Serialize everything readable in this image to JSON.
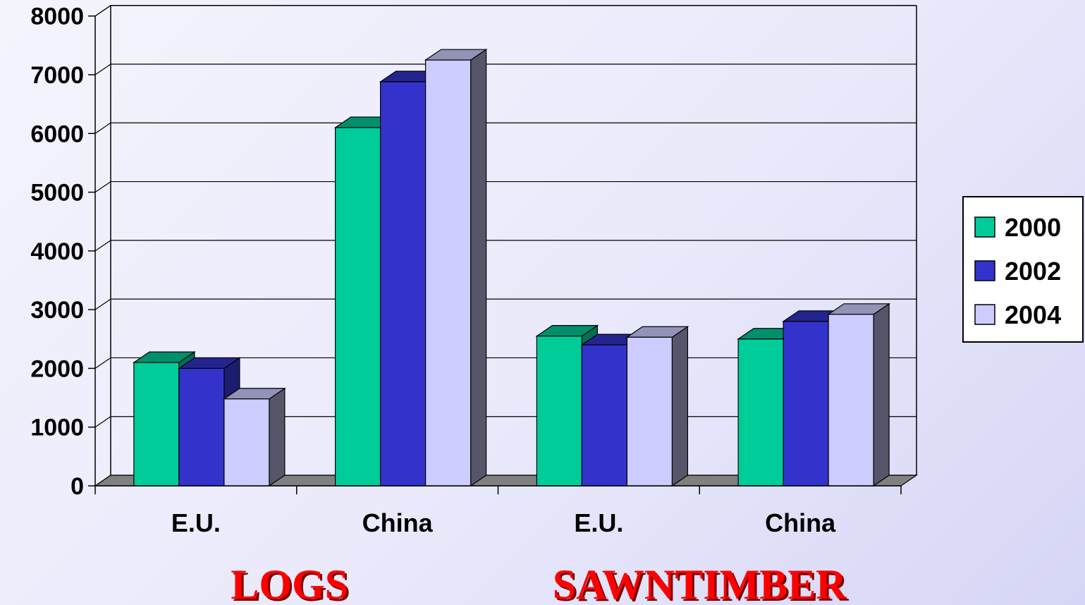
{
  "chart_data": {
    "type": "bar",
    "style": "3d-clustered-column",
    "categories": [
      "E.U.",
      "China",
      "E.U.",
      "China"
    ],
    "groups": [
      {
        "label": "LOGS",
        "categories": [
          "E.U.",
          "China"
        ]
      },
      {
        "label": "SAWNTIMBER",
        "categories": [
          "E.U.",
          "China"
        ]
      }
    ],
    "series": [
      {
        "name": "2000",
        "color": "#00cc99",
        "values": [
          2100,
          6100,
          2550,
          2500
        ]
      },
      {
        "name": "2002",
        "color": "#3333cc",
        "values": [
          2000,
          6880,
          2400,
          2800
        ]
      },
      {
        "name": "2004",
        "color": "#ccccff",
        "values": [
          1480,
          7250,
          2530,
          2920
        ]
      }
    ],
    "ylim": [
      0,
      8000
    ],
    "yticks": [
      "0",
      "1000",
      "2000",
      "3000",
      "4000",
      "5000",
      "6000",
      "7000",
      "8000"
    ],
    "grid": true,
    "legend_position": "right"
  }
}
